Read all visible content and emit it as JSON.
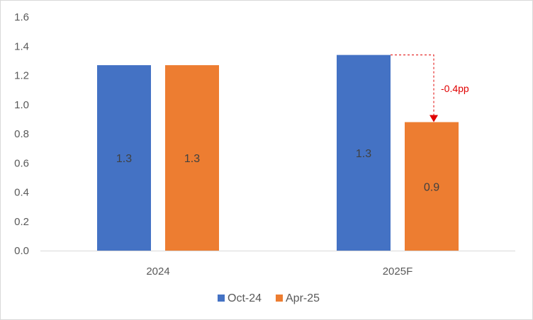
{
  "chart_data": {
    "type": "bar",
    "categories": [
      "2024",
      "2025F"
    ],
    "series": [
      {
        "name": "Oct-24",
        "color": "#4472c4",
        "values": [
          1.27,
          1.34
        ],
        "labels": [
          "1.3",
          "1.3"
        ]
      },
      {
        "name": "Apr-25",
        "color": "#ed7d31",
        "values": [
          1.27,
          0.88
        ],
        "labels": [
          "1.3",
          "0.9"
        ]
      }
    ],
    "y_ticks": [
      "0.0",
      "0.2",
      "0.4",
      "0.6",
      "0.8",
      "1.0",
      "1.2",
      "1.4",
      "1.6"
    ],
    "ylim": [
      0,
      1.6
    ],
    "grid": false,
    "legend_position": "bottom",
    "annotation": {
      "text": "-0.4pp",
      "color": "#e00000",
      "category": "2025F"
    }
  }
}
